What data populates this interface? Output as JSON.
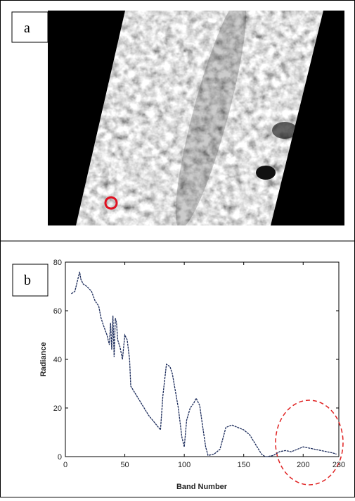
{
  "panel_labels": [
    "a",
    "b"
  ],
  "chart_data": {
    "type": "line",
    "x_label": "Band Number",
    "y_label": "Radiance",
    "xlim": [
      0,
      230
    ],
    "ylim": [
      0,
      80
    ],
    "xticks": [
      0,
      50,
      100,
      150,
      200,
      230
    ],
    "yticks": [
      0,
      20,
      40,
      60,
      80
    ],
    "x": [
      5,
      8,
      10,
      12,
      13,
      15,
      18,
      20,
      22,
      25,
      28,
      30,
      32,
      35,
      37,
      38,
      39,
      40,
      41,
      42,
      43,
      44,
      46,
      48,
      50,
      52,
      54,
      55,
      60,
      65,
      70,
      75,
      80,
      82,
      85,
      88,
      90,
      95,
      98,
      100,
      102,
      105,
      108,
      110,
      113,
      115,
      118,
      120,
      125,
      130,
      135,
      140,
      145,
      150,
      155,
      160,
      165,
      168,
      170,
      175,
      180,
      185,
      190,
      195,
      200,
      205,
      210,
      215,
      220,
      225,
      228
    ],
    "series": [
      {
        "color": "#1a2a5a",
        "values": [
          67,
          68,
          72,
          76,
          73,
          71,
          70,
          69,
          68,
          64,
          62,
          57,
          54,
          50,
          46,
          55,
          44,
          58,
          41,
          57,
          55,
          48,
          45,
          40,
          50,
          48,
          40,
          29,
          25,
          21,
          17,
          14,
          11,
          25,
          38,
          37,
          34,
          20,
          8,
          4,
          15,
          20,
          22,
          24,
          21,
          14,
          4,
          0.5,
          1,
          3,
          12,
          13,
          12,
          11,
          9,
          5,
          1,
          0,
          0,
          0.5,
          2,
          2.5,
          2,
          3,
          4,
          3.5,
          3,
          2.5,
          2,
          1.5,
          1
        ]
      }
    ]
  }
}
